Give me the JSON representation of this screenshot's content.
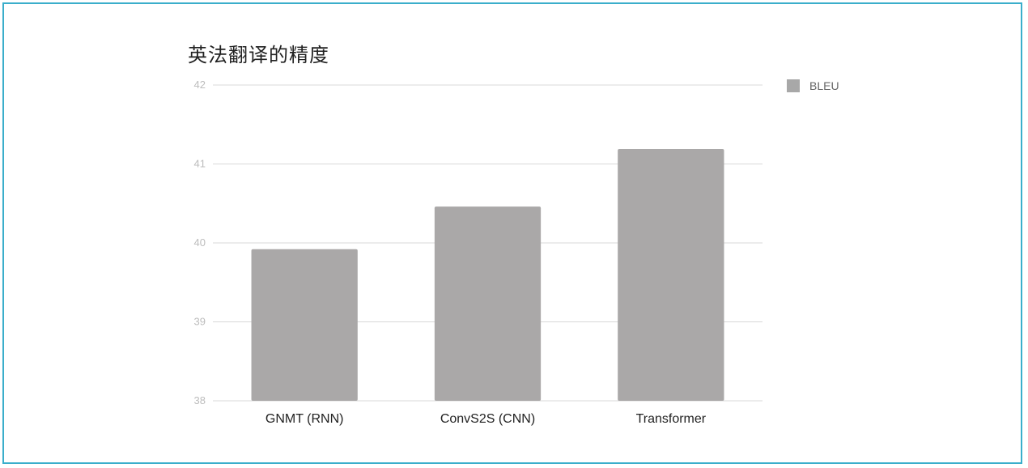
{
  "chart_data": {
    "type": "bar",
    "title": "英法翻译的精度",
    "categories": [
      "GNMT (RNN)",
      "ConvS2S (CNN)",
      "Transformer"
    ],
    "series": [
      {
        "name": "BLEU",
        "values": [
          39.92,
          40.46,
          41.19
        ]
      }
    ],
    "ylim": [
      38,
      42
    ],
    "yticks": [
      38,
      39,
      40,
      41,
      42
    ],
    "grid": true,
    "legend": "top-right",
    "colors": {
      "bar": "#aaa8a8",
      "legend_swatch": "#a8a8a8",
      "grid": "#d9d9d9",
      "border": "#3aaecb"
    }
  }
}
